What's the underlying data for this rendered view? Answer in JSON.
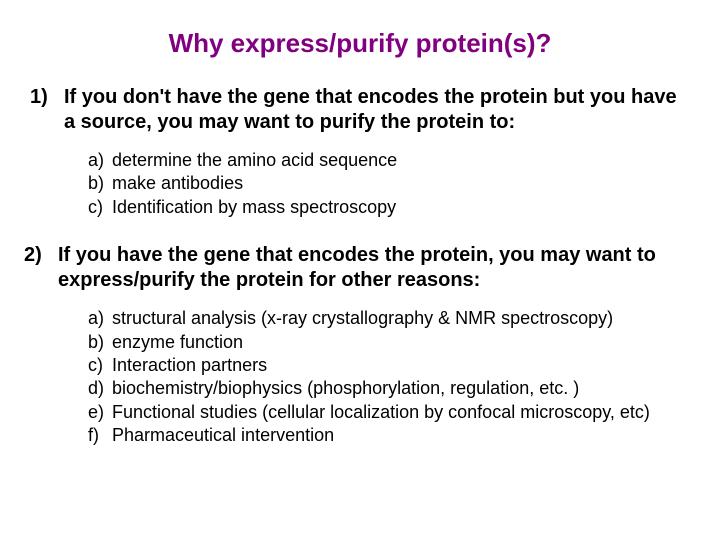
{
  "title": "Why express/purify protein(s)?",
  "colors": {
    "title": "#800080",
    "text": "#000000",
    "background": "#ffffff"
  },
  "fonts": {
    "title_family": "Arial Black",
    "title_size_pt": 20,
    "body_family": "Arial",
    "body_size_pt": 15,
    "sub_size_pt": 13
  },
  "items": [
    {
      "marker": "1)",
      "text": "If you don't have the gene that encodes the protein but you have a source, you may want to purify the protein to:",
      "sub": [
        {
          "marker": "a)",
          "text": "determine the amino acid sequence"
        },
        {
          "marker": "b)",
          "text": "make antibodies"
        },
        {
          "marker": "c)",
          "text": "Identification by mass spectroscopy"
        }
      ]
    },
    {
      "marker": "2)",
      "text": "If you have the gene that encodes the protein, you may want to express/purify the protein for other reasons:",
      "sub": [
        {
          "marker": "a)",
          "text": "structural analysis (x-ray crystallography & NMR spectroscopy)"
        },
        {
          "marker": "b)",
          "text": "enzyme function"
        },
        {
          "marker": "c)",
          "text": "Interaction partners"
        },
        {
          "marker": "d)",
          "text": "biochemistry/biophysics (phosphorylation, regulation, etc. )"
        },
        {
          "marker": "e)",
          "text": "Functional studies (cellular localization by confocal microscopy, etc)"
        },
        {
          "marker": "f)",
          "text": "Pharmaceutical intervention"
        }
      ]
    }
  ]
}
